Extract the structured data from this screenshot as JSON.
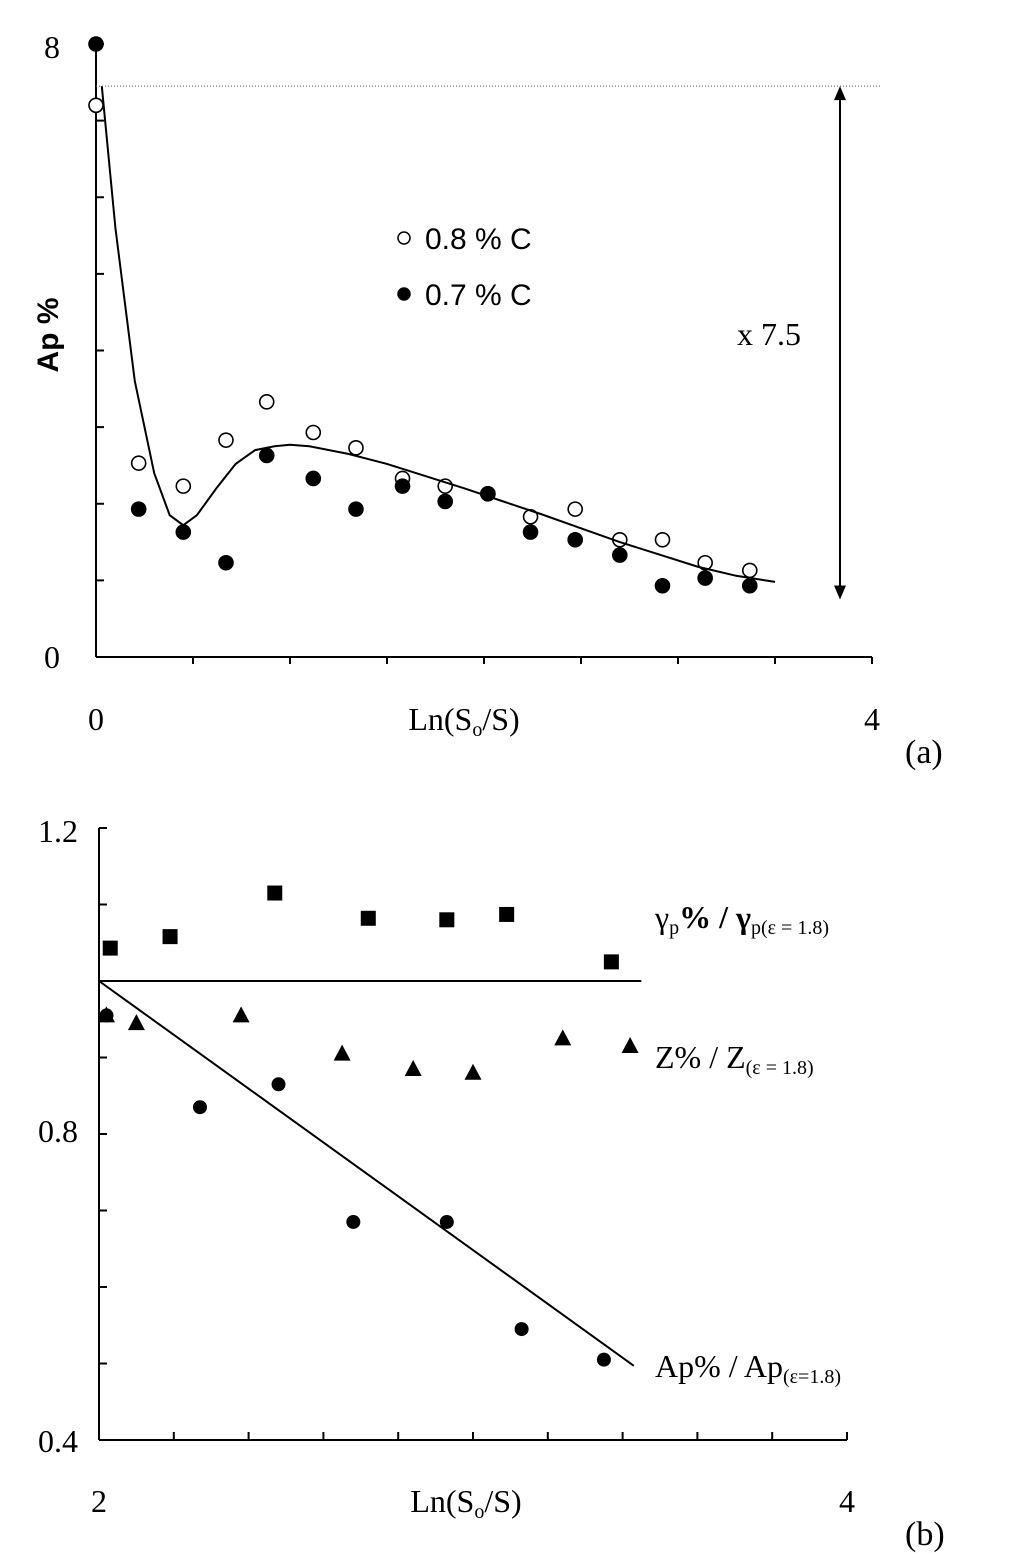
{
  "chart_data": [
    {
      "panel_label": "(a)",
      "type": "scatter",
      "xlabel_main": "Ln(S",
      "xlabel_sub": "o",
      "xlabel_tail": "/S)",
      "ylabel": "Ap %",
      "xlim": [
        0,
        4
      ],
      "ylim": [
        0,
        8
      ],
      "x_tick_labels": [
        "0",
        "4"
      ],
      "y_tick_labels": [
        "0",
        "8"
      ],
      "x_minor_ticks": [
        0.5,
        1.0,
        1.5,
        2.0,
        2.5,
        3.0,
        3.5
      ],
      "y_minor_ticks": [
        1,
        2,
        3,
        4,
        5,
        6,
        7
      ],
      "annotation": "x 7.5",
      "ratio_line_top": 7.45,
      "ratio_line_bottom": 0.75,
      "series": [
        {
          "name": "0.8 % C",
          "marker": "open-circle",
          "x": [
            0.0,
            0.22,
            0.45,
            0.67,
            0.88,
            1.12,
            1.34,
            1.58,
            1.8,
            2.02,
            2.24,
            2.47,
            2.7,
            2.92,
            3.14,
            3.37
          ],
          "y": [
            7.2,
            2.53,
            2.23,
            2.83,
            3.33,
            2.93,
            2.73,
            2.33,
            2.23,
            2.13,
            1.83,
            1.93,
            1.53,
            1.53,
            1.23,
            1.13
          ]
        },
        {
          "name": "0.7 % C",
          "marker": "filled-circle",
          "x": [
            0.0,
            0.22,
            0.45,
            0.67,
            0.88,
            1.12,
            1.34,
            1.58,
            1.8,
            2.02,
            2.24,
            2.47,
            2.7,
            2.92,
            3.14,
            3.37
          ],
          "y": [
            8.0,
            1.93,
            1.63,
            1.23,
            2.63,
            2.33,
            1.93,
            2.23,
            2.03,
            2.13,
            1.63,
            1.53,
            1.33,
            0.93,
            1.03,
            0.93
          ]
        },
        {
          "name": "fit",
          "marker": "line",
          "x": [
            0.03,
            0.1,
            0.2,
            0.3,
            0.38,
            0.45,
            0.52,
            0.62,
            0.72,
            0.82,
            0.92,
            1.0,
            1.1,
            1.3,
            1.5,
            1.7,
            1.9,
            2.1,
            2.3,
            2.5,
            2.7,
            2.9,
            3.1,
            3.3,
            3.5
          ],
          "y": [
            7.45,
            5.6,
            3.6,
            2.4,
            1.85,
            1.72,
            1.85,
            2.2,
            2.52,
            2.7,
            2.75,
            2.77,
            2.75,
            2.65,
            2.52,
            2.36,
            2.2,
            2.03,
            1.86,
            1.68,
            1.5,
            1.34,
            1.18,
            1.06,
            0.98
          ]
        }
      ]
    },
    {
      "panel_label": "(b)",
      "type": "scatter",
      "xlabel_main": "Ln(S",
      "xlabel_sub": "o",
      "xlabel_tail": "/S)",
      "xlim": [
        2,
        4
      ],
      "ylim": [
        0.4,
        1.2
      ],
      "x_tick_labels": [
        "2",
        "4"
      ],
      "y_tick_labels": [
        "0.4",
        "0.8",
        "1.2"
      ],
      "x_minor_ticks": [
        2.2,
        2.4,
        2.6,
        2.8,
        3.0,
        3.2,
        3.4,
        3.6,
        3.8
      ],
      "y_minor_ticks": [
        0.5,
        0.6,
        0.7,
        0.9,
        1.0,
        1.1
      ],
      "series": [
        {
          "label_main": "γ",
          "label_sub1": "p",
          "label_mid": "% / γ",
          "label_sub2": "p(ε = 1.8)",
          "marker": "square",
          "x": [
            2.03,
            2.19,
            2.47,
            2.72,
            2.93,
            3.09,
            3.37
          ],
          "y": [
            1.043,
            1.058,
            1.115,
            1.082,
            1.08,
            1.087,
            1.025
          ]
        },
        {
          "label_main": "Z% / Z",
          "label_sub": "(ε = 1.8)",
          "marker": "triangle",
          "x": [
            2.02,
            2.1,
            2.38,
            2.65,
            2.84,
            3.0,
            3.24,
            3.42
          ],
          "y": [
            0.955,
            0.945,
            0.955,
            0.905,
            0.885,
            0.88,
            0.925,
            0.915
          ]
        },
        {
          "label_main": "Ap% / Ap",
          "label_sub": "(ε=1.8)",
          "marker": "filled-circle",
          "x": [
            2.02,
            2.27,
            2.48,
            2.68,
            2.93,
            3.13,
            3.35
          ],
          "y": [
            0.955,
            0.835,
            0.865,
            0.685,
            0.685,
            0.545,
            0.505
          ]
        }
      ],
      "lines": [
        {
          "name": "unity-line",
          "x": [
            2.0,
            3.45
          ],
          "y": [
            1.0,
            1.0
          ]
        },
        {
          "name": "ap-trend-line",
          "x": [
            2.0,
            3.43
          ],
          "y": [
            1.0,
            0.497
          ]
        }
      ]
    }
  ]
}
